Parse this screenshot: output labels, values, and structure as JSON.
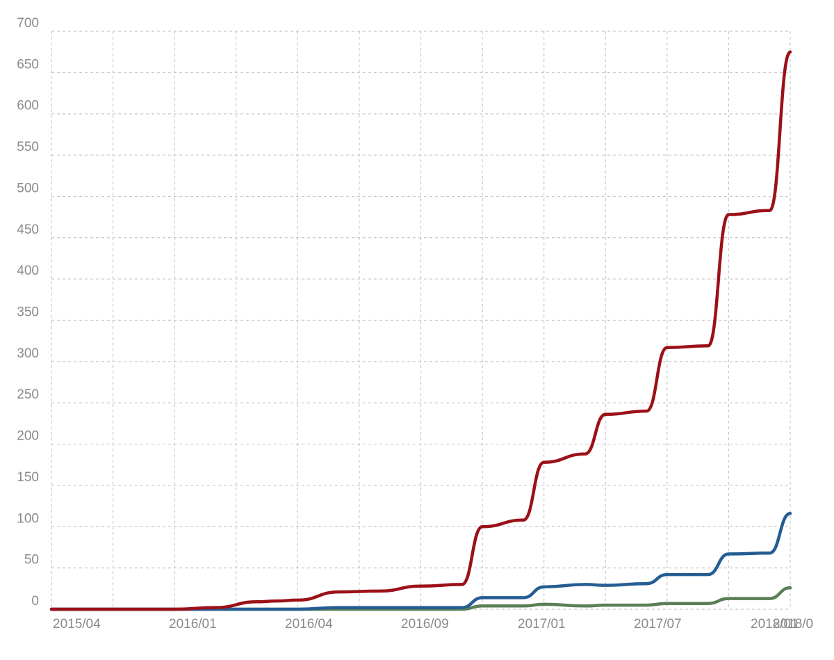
{
  "chart_data": {
    "type": "line",
    "title": "",
    "xlabel": "",
    "ylabel": "",
    "ylim": [
      0,
      700
    ],
    "yticks": [
      "0",
      "50",
      "100",
      "150",
      "200",
      "250",
      "300",
      "350",
      "400",
      "450",
      "500",
      "550",
      "600",
      "650",
      "700"
    ],
    "xticks": [
      "2015/04",
      "2016/01",
      "2016/04",
      "2016/09",
      "2017/01",
      "2017/07",
      "2018/01",
      "2018/0"
    ],
    "grid": true,
    "series": [
      {
        "color": "#9b1118",
        "points": [
          [
            "2015/01",
            0
          ],
          [
            "2015/07",
            0
          ],
          [
            "2015/09",
            2
          ],
          [
            "2015/11",
            9
          ],
          [
            "2015/12",
            10
          ],
          [
            "2016/01",
            11
          ],
          [
            "2016/03",
            21
          ],
          [
            "2016/05",
            22
          ],
          [
            "2016/07",
            28
          ],
          [
            "2016/09",
            30
          ],
          [
            "2016/10",
            100
          ],
          [
            "2016/12",
            108
          ],
          [
            "2017/01",
            178
          ],
          [
            "2017/03",
            188
          ],
          [
            "2017/04",
            236
          ],
          [
            "2017/06",
            240
          ],
          [
            "2017/07",
            317
          ],
          [
            "2017/09",
            319
          ],
          [
            "2017/10",
            478
          ],
          [
            "2017/12",
            483
          ],
          [
            "2018/01",
            675
          ]
        ]
      },
      {
        "color": "#255d92",
        "points": [
          [
            "2015/01",
            0
          ],
          [
            "2016/01",
            0
          ],
          [
            "2016/03",
            2
          ],
          [
            "2016/09",
            2
          ],
          [
            "2016/10",
            14
          ],
          [
            "2016/12",
            14
          ],
          [
            "2017/01",
            27
          ],
          [
            "2017/03",
            30
          ],
          [
            "2017/04",
            29
          ],
          [
            "2017/06",
            31
          ],
          [
            "2017/07",
            42
          ],
          [
            "2017/09",
            42
          ],
          [
            "2017/10",
            67
          ],
          [
            "2017/12",
            68
          ],
          [
            "2018/01",
            116
          ]
        ]
      },
      {
        "color": "#5a7f57",
        "points": [
          [
            "2015/01",
            0
          ],
          [
            "2016/09",
            0
          ],
          [
            "2016/10",
            4
          ],
          [
            "2016/12",
            4
          ],
          [
            "2017/01",
            6
          ],
          [
            "2017/03",
            4
          ],
          [
            "2017/04",
            5
          ],
          [
            "2017/06",
            5
          ],
          [
            "2017/07",
            7
          ],
          [
            "2017/09",
            7
          ],
          [
            "2017/10",
            13
          ],
          [
            "2017/12",
            13
          ],
          [
            "2018/01",
            26
          ]
        ]
      }
    ]
  }
}
